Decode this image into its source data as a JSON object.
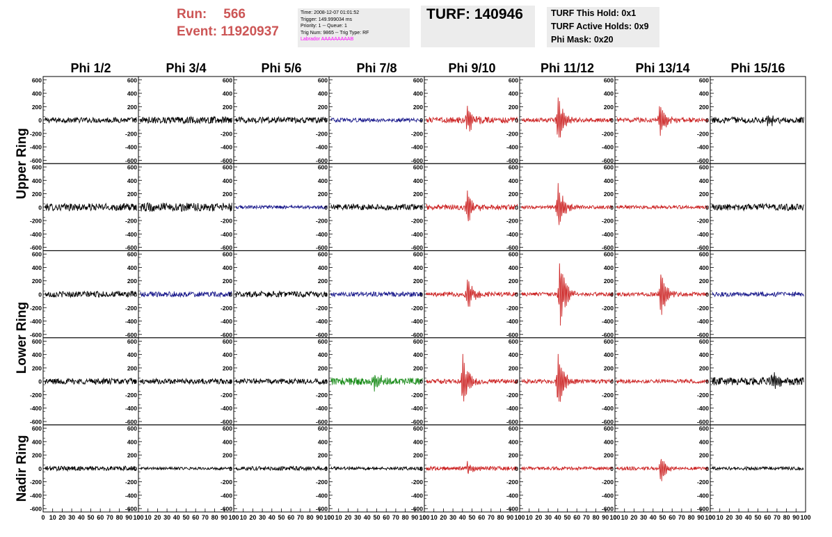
{
  "header": {
    "run_label": "Run:",
    "run_value": "566",
    "event_label": "Event:",
    "event_value": "11920937",
    "trigger_box": {
      "time": "Time: 2008-12-07 01:01:52",
      "trigger": "Trigger: 149.999034 ms",
      "priority": "Priority: 1 -- Queue: 1",
      "trig_num": "Trig Num: 9865 -- Trig Type: RF",
      "labrador": "Labrador AAAAAAAAAB"
    },
    "turf": "TURF: 140946",
    "holds": {
      "this_hold": "TURF This Hold: 0x1",
      "active_holds": "TURF Active Holds: 0x9",
      "phi_mask": "Phi Mask: 0x20"
    }
  },
  "chart_data": {
    "type": "line",
    "column_labels": [
      "Phi 1/2",
      "Phi 3/4",
      "Phi 5/6",
      "Phi 7/8",
      "Phi 9/10",
      "Phi 11/12",
      "Phi 13/14",
      "Phi 15/16"
    ],
    "ring_labels": [
      {
        "label": "Upper Ring",
        "rows": 2
      },
      {
        "label": "Lower Ring",
        "rows": 2
      },
      {
        "label": "Nadir Ring",
        "rows": 1
      }
    ],
    "xlim": [
      0,
      100
    ],
    "ylim": [
      -650,
      650
    ],
    "y_ticks": [
      -600,
      -400,
      -200,
      0,
      200,
      400,
      600
    ],
    "x_ticks": [
      0,
      10,
      20,
      30,
      40,
      50,
      60,
      70,
      80,
      90,
      100
    ],
    "colors": {
      "black": "#000000",
      "red": "#cc2222",
      "blue": "#1a1a8c",
      "green": "#1a8c1a"
    },
    "panels": [
      [
        {
          "color": "black",
          "noise": 40,
          "pulse_t": 0,
          "pulse_amp": 0
        },
        {
          "color": "black",
          "noise": 50,
          "pulse_t": 0,
          "pulse_amp": 0
        },
        {
          "color": "black",
          "noise": 45,
          "pulse_t": 0,
          "pulse_amp": 0
        },
        {
          "color": "blue",
          "noise": 30,
          "pulse_t": 0,
          "pulse_amp": 0
        },
        {
          "color": "red",
          "noise": 45,
          "pulse_t": 45,
          "pulse_amp": 230
        },
        {
          "color": "red",
          "noise": 30,
          "pulse_t": 40,
          "pulse_amp": 380
        },
        {
          "color": "red",
          "noise": 35,
          "pulse_t": 47,
          "pulse_amp": 260
        },
        {
          "color": "black",
          "noise": 45,
          "pulse_t": 60,
          "pulse_amp": 120
        }
      ],
      [
        {
          "color": "black",
          "noise": 55,
          "pulse_t": 0,
          "pulse_amp": 0
        },
        {
          "color": "black",
          "noise": 65,
          "pulse_t": 0,
          "pulse_amp": 0
        },
        {
          "color": "blue",
          "noise": 25,
          "pulse_t": 0,
          "pulse_amp": 0
        },
        {
          "color": "black",
          "noise": 45,
          "pulse_t": 0,
          "pulse_amp": 0
        },
        {
          "color": "red",
          "noise": 40,
          "pulse_t": 45,
          "pulse_amp": 270
        },
        {
          "color": "red",
          "noise": 25,
          "pulse_t": 40,
          "pulse_amp": 390
        },
        {
          "color": "red",
          "noise": 25,
          "pulse_t": 0,
          "pulse_amp": 0
        },
        {
          "color": "black",
          "noise": 50,
          "pulse_t": 0,
          "pulse_amp": 0
        }
      ],
      [
        {
          "color": "black",
          "noise": 45,
          "pulse_t": 0,
          "pulse_amp": 0
        },
        {
          "color": "blue",
          "noise": 40,
          "pulse_t": 0,
          "pulse_amp": 0
        },
        {
          "color": "black",
          "noise": 45,
          "pulse_t": 0,
          "pulse_amp": 0
        },
        {
          "color": "blue",
          "noise": 35,
          "pulse_t": 0,
          "pulse_amp": 0
        },
        {
          "color": "red",
          "noise": 35,
          "pulse_t": 45,
          "pulse_amp": 250
        },
        {
          "color": "red",
          "noise": 30,
          "pulse_t": 42,
          "pulse_amp": 580
        },
        {
          "color": "red",
          "noise": 30,
          "pulse_t": 48,
          "pulse_amp": 360
        },
        {
          "color": "blue",
          "noise": 35,
          "pulse_t": 0,
          "pulse_amp": 0
        }
      ],
      [
        {
          "color": "black",
          "noise": 45,
          "pulse_t": 0,
          "pulse_amp": 0
        },
        {
          "color": "black",
          "noise": 40,
          "pulse_t": 0,
          "pulse_amp": 0
        },
        {
          "color": "black",
          "noise": 40,
          "pulse_t": 0,
          "pulse_amp": 0
        },
        {
          "color": "green",
          "noise": 55,
          "pulse_t": 47,
          "pulse_amp": 180
        },
        {
          "color": "red",
          "noise": 35,
          "pulse_t": 40,
          "pulse_amp": 430
        },
        {
          "color": "red",
          "noise": 30,
          "pulse_t": 40,
          "pulse_amp": 470
        },
        {
          "color": "red",
          "noise": 30,
          "pulse_t": 0,
          "pulse_amp": 0
        },
        {
          "color": "black",
          "noise": 60,
          "pulse_t": 65,
          "pulse_amp": 120
        }
      ],
      [
        {
          "color": "black",
          "noise": 35,
          "pulse_t": 0,
          "pulse_amp": 0
        },
        {
          "color": "black",
          "noise": 20,
          "pulse_t": 0,
          "pulse_amp": 0
        },
        {
          "color": "black",
          "noise": 30,
          "pulse_t": 0,
          "pulse_amp": 0
        },
        {
          "color": "black",
          "noise": 25,
          "pulse_t": 0,
          "pulse_amp": 0
        },
        {
          "color": "red",
          "noise": 30,
          "pulse_t": 45,
          "pulse_amp": 100
        },
        {
          "color": "red",
          "noise": 25,
          "pulse_t": 0,
          "pulse_amp": 0
        },
        {
          "color": "red",
          "noise": 25,
          "pulse_t": 48,
          "pulse_amp": 210
        },
        {
          "color": "black",
          "noise": 25,
          "pulse_t": 0,
          "pulse_amp": 0
        }
      ]
    ]
  }
}
